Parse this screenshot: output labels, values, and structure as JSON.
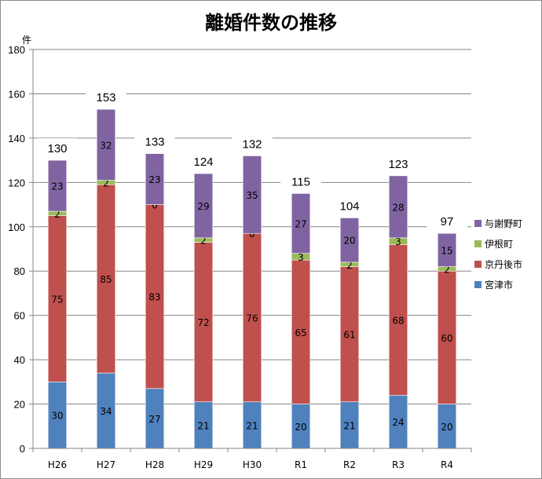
{
  "chart_data": {
    "type": "bar",
    "stacked": true,
    "title": "離婚件数の推移",
    "ylabel": "件",
    "xlabel": "",
    "ylim": [
      0,
      180
    ],
    "yticks": [
      0,
      20,
      40,
      60,
      80,
      100,
      120,
      140,
      160,
      180
    ],
    "grid": true,
    "legend_position": "right",
    "categories": [
      "H26",
      "H27",
      "H28",
      "H29",
      "H30",
      "R1",
      "R2",
      "R3",
      "R4"
    ],
    "series": [
      {
        "name": "宮津市",
        "color": "#4f81bd",
        "values": [
          30,
          34,
          27,
          21,
          21,
          20,
          21,
          24,
          20
        ]
      },
      {
        "name": "京丹後市",
        "color": "#c0504d",
        "values": [
          75,
          85,
          83,
          72,
          76,
          65,
          61,
          68,
          60
        ]
      },
      {
        "name": "伊根町",
        "color": "#9bbb59",
        "values": [
          2,
          2,
          0,
          2,
          0,
          3,
          2,
          3,
          2
        ]
      },
      {
        "name": "与謝野町",
        "color": "#8064a2",
        "values": [
          23,
          32,
          23,
          29,
          35,
          27,
          20,
          28,
          15
        ]
      }
    ],
    "totals": [
      130,
      153,
      133,
      124,
      132,
      115,
      104,
      123,
      97
    ],
    "legend_order": [
      "与謝野町",
      "伊根町",
      "京丹後市",
      "宮津市"
    ]
  }
}
